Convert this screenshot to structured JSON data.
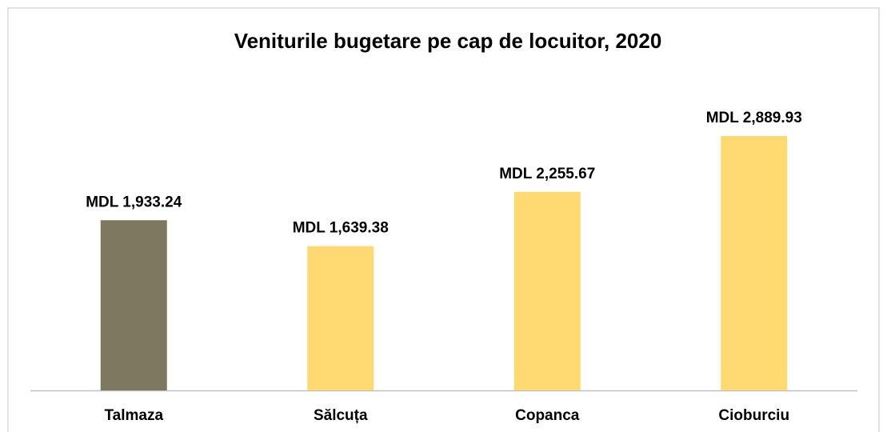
{
  "chart_data": {
    "type": "bar",
    "title": "Veniturile bugetare pe cap de locuitor, 2020",
    "categories": [
      "Talmaza",
      "Sălcuța",
      "Copanca",
      "Cioburciu"
    ],
    "values": [
      1933.24,
      1639.38,
      2255.67,
      2889.93
    ],
    "value_labels": [
      "MDL 1,933.24",
      "MDL 1,639.38",
      "MDL 2,255.67",
      "MDL 2,889.93"
    ],
    "colors": [
      "#7f7860",
      "#ffd971",
      "#ffd971",
      "#ffd971"
    ]
  }
}
